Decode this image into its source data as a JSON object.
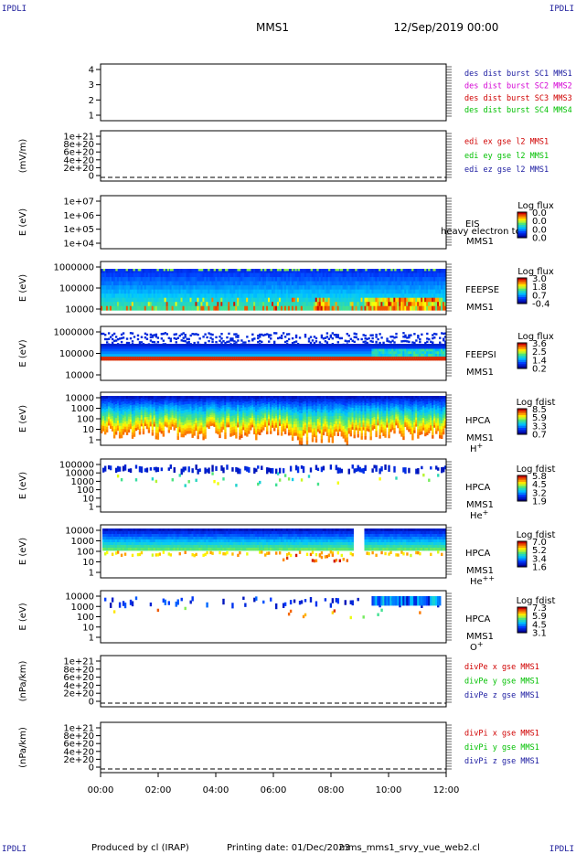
{
  "header": {
    "corner_label": "IPDLI",
    "mission": "MMS1",
    "date": "12/Sep/2019 00:00"
  },
  "footer": {
    "produced_by": "Produced by cl (IRAP)",
    "printing_date": "Printing date: 01/Dec/2023",
    "script": "mms_mms1_srvy_vue_web2.cl"
  },
  "time_axis": [
    "00:00",
    "02:00",
    "04:00",
    "06:00",
    "08:00",
    "10:00",
    "12:00"
  ],
  "colors": {
    "ch1": "#1a1aa0",
    "ch2": "#d400d4",
    "ch3": "#d00000",
    "ch4": "#00c000",
    "x": "#d00000",
    "y": "#00c000",
    "z": "#1a1aa0"
  },
  "panels": [
    {
      "id": "burst",
      "type": "lines",
      "ylabel": "",
      "yticks": [
        "4",
        "3",
        "2",
        "1"
      ],
      "ylim": [
        0.5,
        4.5
      ],
      "legend": [
        {
          "text": "des dist burst SC1 MMS1",
          "color": "#1a1aa0"
        },
        {
          "text": "des dist burst SC2 MMS2",
          "color": "#d400d4"
        },
        {
          "text": "des dist burst SC3 MMS3",
          "color": "#d00000"
        },
        {
          "text": "des dist burst SC4 MMS4",
          "color": "#00c000"
        }
      ]
    },
    {
      "id": "edi",
      "type": "lines",
      "ylabel": "(mV/m)",
      "yticks": [
        "1e+21",
        "8e+20",
        "6e+20",
        "4e+20",
        "2e+20",
        "0"
      ],
      "ylim": [
        0,
        1e+21
      ],
      "legend": [
        {
          "text": "edi ex gse l2 MMS1",
          "color": "#d00000"
        },
        {
          "text": "edi ey gse l2 MMS1",
          "color": "#00c000"
        },
        {
          "text": "edi ez gse l2 MMS1",
          "color": "#1a1aa0"
        }
      ]
    },
    {
      "id": "eis",
      "type": "spectrogram",
      "ylabel": "E (eV)",
      "yticks": [
        "1e+07",
        "1e+06",
        "1e+05",
        "1e+04"
      ],
      "label": [
        "EIS",
        "MMS1"
      ],
      "extra": "heavy electron tof",
      "cbar_title": "Log flux",
      "cbar_ticks": [
        "0.0",
        "0.0",
        "0.0",
        "0.0"
      ]
    },
    {
      "id": "feepse",
      "type": "spectrogram",
      "ylabel": "E (eV)",
      "yticks": [
        "1000000",
        "100000",
        "10000"
      ],
      "label": [
        "FEEPSE",
        "MMS1"
      ],
      "cbar_title": "Log flux",
      "cbar_ticks": [
        "3.0",
        "1.8",
        "0.7",
        "-0.4"
      ]
    },
    {
      "id": "feepsi",
      "type": "spectrogram",
      "ylabel": "E (eV)",
      "yticks": [
        "1000000",
        "100000",
        "10000"
      ],
      "label": [
        "FEEPSI",
        "MMS1"
      ],
      "cbar_title": "Log flux",
      "cbar_ticks": [
        "3.6",
        "2.5",
        "1.4",
        "0.2"
      ]
    },
    {
      "id": "hpca_h",
      "type": "spectrogram",
      "ylabel": "E (eV)",
      "yticks": [
        "10000",
        "1000",
        "100",
        "10",
        "1"
      ],
      "label": [
        "HPCA",
        "MMS1"
      ],
      "species": "H",
      "charge": "+",
      "cbar_title": "Log fdist",
      "cbar_ticks": [
        "8.5",
        "5.9",
        "3.3",
        "0.7"
      ]
    },
    {
      "id": "hpca_he",
      "type": "spectrogram",
      "ylabel": "E (eV)",
      "yticks": [
        "100000",
        "10000",
        "1000",
        "100",
        "10",
        "1"
      ],
      "label": [
        "HPCA",
        "MMS1"
      ],
      "species": "He",
      "charge": "+",
      "cbar_title": "Log fdist",
      "cbar_ticks": [
        "5.8",
        "4.5",
        "3.2",
        "1.9"
      ]
    },
    {
      "id": "hpca_hepp",
      "type": "spectrogram",
      "ylabel": "E (eV)",
      "yticks": [
        "10000",
        "1000",
        "100",
        "10",
        "1"
      ],
      "label": [
        "HPCA",
        "MMS1"
      ],
      "species": "He",
      "charge": "++",
      "cbar_title": "Log fdist",
      "cbar_ticks": [
        "7.0",
        "5.2",
        "3.4",
        "1.6"
      ]
    },
    {
      "id": "hpca_o",
      "type": "spectrogram",
      "ylabel": "E (eV)",
      "yticks": [
        "10000",
        "1000",
        "100",
        "10",
        "1"
      ],
      "label": [
        "HPCA",
        "MMS1"
      ],
      "species": "O",
      "charge": "+",
      "cbar_title": "Log fdist",
      "cbar_ticks": [
        "7.3",
        "5.9",
        "4.5",
        "3.1"
      ]
    },
    {
      "id": "divpe",
      "type": "lines",
      "ylabel": "(nPa/km)",
      "yticks": [
        "1e+21",
        "8e+20",
        "6e+20",
        "4e+20",
        "2e+20",
        "0"
      ],
      "ylim": [
        0,
        1e+21
      ],
      "legend": [
        {
          "text": "divPe x gse MMS1",
          "color": "#d00000"
        },
        {
          "text": "divPe y gse MMS1",
          "color": "#00c000"
        },
        {
          "text": "divPe z gse MMS1",
          "color": "#1a1aa0"
        }
      ]
    },
    {
      "id": "divpi",
      "type": "lines",
      "ylabel": "(nPa/km)",
      "yticks": [
        "1e+21",
        "8e+20",
        "6e+20",
        "4e+20",
        "2e+20",
        "0"
      ],
      "ylim": [
        0,
        1e+21
      ],
      "legend": [
        {
          "text": "divPi x gse MMS1",
          "color": "#d00000"
        },
        {
          "text": "divPi y gse MMS1",
          "color": "#00c000"
        },
        {
          "text": "divPi z gse MMS1",
          "color": "#1a1aa0"
        }
      ]
    }
  ],
  "chart_data": {
    "type": "heatmap",
    "x": [
      "00:00",
      "02:00",
      "04:00",
      "06:00",
      "08:00",
      "10:00",
      "12:00"
    ],
    "xlim": [
      "00:00",
      "12:00"
    ],
    "series": [
      {
        "name": "FEEPSE",
        "yrange_eV": [
          10000,
          1000000
        ],
        "cbar": [
          -0.4,
          3.0
        ]
      },
      {
        "name": "FEEPSI",
        "yrange_eV": [
          10000,
          1000000
        ],
        "cbar": [
          0.2,
          3.6
        ]
      },
      {
        "name": "HPCA H+",
        "yrange_eV": [
          1,
          10000
        ],
        "cbar": [
          0.7,
          8.5
        ]
      },
      {
        "name": "HPCA He+",
        "yrange_eV": [
          1,
          100000
        ],
        "cbar": [
          1.9,
          5.8
        ]
      },
      {
        "name": "HPCA He++",
        "yrange_eV": [
          1,
          10000
        ],
        "cbar": [
          1.6,
          7.0
        ]
      },
      {
        "name": "HPCA O+",
        "yrange_eV": [
          1,
          10000
        ],
        "cbar": [
          3.1,
          7.3
        ]
      }
    ]
  }
}
